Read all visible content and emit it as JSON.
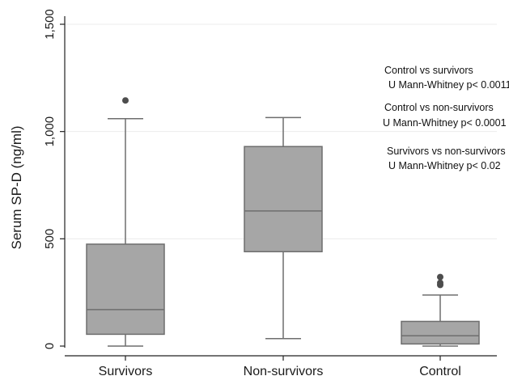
{
  "chart_data": {
    "type": "box",
    "title": "",
    "xlabel": "",
    "ylabel": "Serum SP-D (ng/ml)",
    "ylim": [
      0,
      1500
    ],
    "yticks": [
      0,
      500,
      1000,
      1500
    ],
    "ytick_labels": [
      "0",
      "500",
      "1,000",
      "1,500"
    ],
    "grid": true,
    "categories": [
      "Survivors",
      "Non-survivors",
      "Control"
    ],
    "boxes": [
      {
        "category": "Survivors",
        "whisker_low": 0,
        "q1": 55,
        "median": 170,
        "q3": 475,
        "whisker_high": 1060,
        "outliers": [
          1145
        ]
      },
      {
        "category": "Non-survivors",
        "whisker_low": 35,
        "q1": 440,
        "median": 630,
        "q3": 930,
        "whisker_high": 1065,
        "outliers": []
      },
      {
        "category": "Control",
        "whisker_low": 0,
        "q1": 10,
        "median": 48,
        "q3": 115,
        "whisker_high": 238,
        "outliers": [
          285,
          295,
          322
        ]
      }
    ],
    "annotations": [
      "Control vs survivors",
      "U Mann-Whitney p< 0.0011",
      "Control vs non-survivors",
      "U Mann-Whitney p< 0.0001",
      "Survivors vs non-survivors",
      "U Mann-Whitney p< 0.02"
    ],
    "colors": {
      "box_fill": "#a6a6a6",
      "stroke": "#6e6e6e",
      "grid": "#ececec",
      "outlier": "#4d4d4d"
    }
  }
}
